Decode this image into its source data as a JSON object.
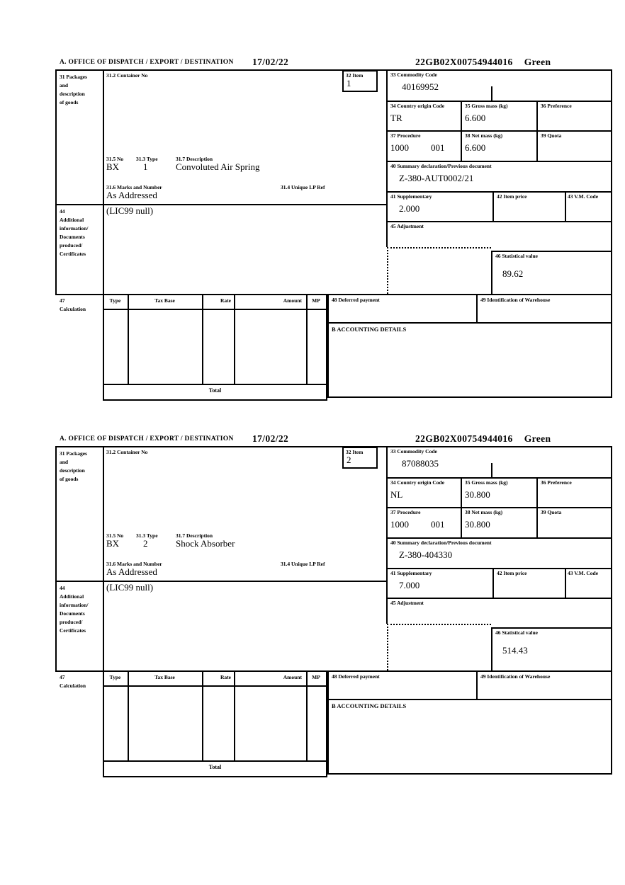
{
  "labels": {
    "office": "A.  OFFICE OF DISPATCH / EXPORT / DESTINATION",
    "box31_line1": "31 Packages",
    "box31_line2": "and",
    "box31_line3": "description",
    "box31_line4": "of goods",
    "box31_2": "31.2 Container No",
    "box32": "32 Item",
    "box33": "33 Commodity Code",
    "box34": "34 Country origin Code",
    "box35": "35 Gross mass (kg)",
    "box36": "36 Preference",
    "box37": "37 Procedure",
    "box38": "38 Net mass (kg)",
    "box39": "39 Quota",
    "box31_5": "31.5 No",
    "box31_3": "31.3 Type",
    "box31_7": "31.7 Description",
    "box31_6": "31.6 Marks and Number",
    "box31_4": "31.4 Unique LP Ref",
    "box40": "40 Summary declaration/Previous document",
    "box41": "41 Supplementary",
    "box42": "42 Item price",
    "box43": "43 V.M. Code",
    "box44_line1": "44",
    "box44_line2": "Additional",
    "box44_line3": "information/",
    "box44_line4": "Documents",
    "box44_line5": "produced/",
    "box44_line6": "Certificates",
    "box45": "45 Adjustment",
    "box46": "46 Statistical value",
    "box47_line1": "47",
    "box47_line2": "Calculation",
    "calc_col_type": "Type",
    "calc_col_tax_base": "Tax Base",
    "calc_col_rate": "Rate",
    "calc_col_amount": "Amount",
    "calc_col_mp": "MP",
    "box48": "48 Deferred payment",
    "box49": "49 Identification of Warehouse",
    "accounting": "B ACCOUNTING DETAILS",
    "total": "Total"
  },
  "sections": [
    {
      "date": "17/02/22",
      "reference": "22GB02X00754944016",
      "channel": "Green",
      "item_number": "1",
      "commodity_code": "40169952",
      "country_origin_code": "TR",
      "gross_mass_kg": "6.600",
      "procedure": "1000",
      "procedure_extra": "001",
      "net_mass_kg": "6.600",
      "package_kind": "BX",
      "package_count": "1",
      "goods_description": "Convoluted Air Spring",
      "marks_and_number": "As Addressed",
      "summary_declaration": "Z-380-AUT0002/21",
      "supplementary_units": "2.000",
      "additional_information": "(LIC99 null)",
      "statistical_value": "89.62"
    },
    {
      "date": "17/02/22",
      "reference": "22GB02X00754944016",
      "channel": "Green",
      "item_number": "2",
      "commodity_code": "87088035",
      "country_origin_code": "NL",
      "gross_mass_kg": "30.800",
      "procedure": "1000",
      "procedure_extra": "001",
      "net_mass_kg": "30.800",
      "package_kind": "BX",
      "package_count": "2",
      "goods_description": "Shock Absorber",
      "marks_and_number": "As Addressed",
      "summary_declaration": "Z-380-404330",
      "supplementary_units": "7.000",
      "additional_information": "(LIC99 null)",
      "statistical_value": "514.43"
    }
  ]
}
